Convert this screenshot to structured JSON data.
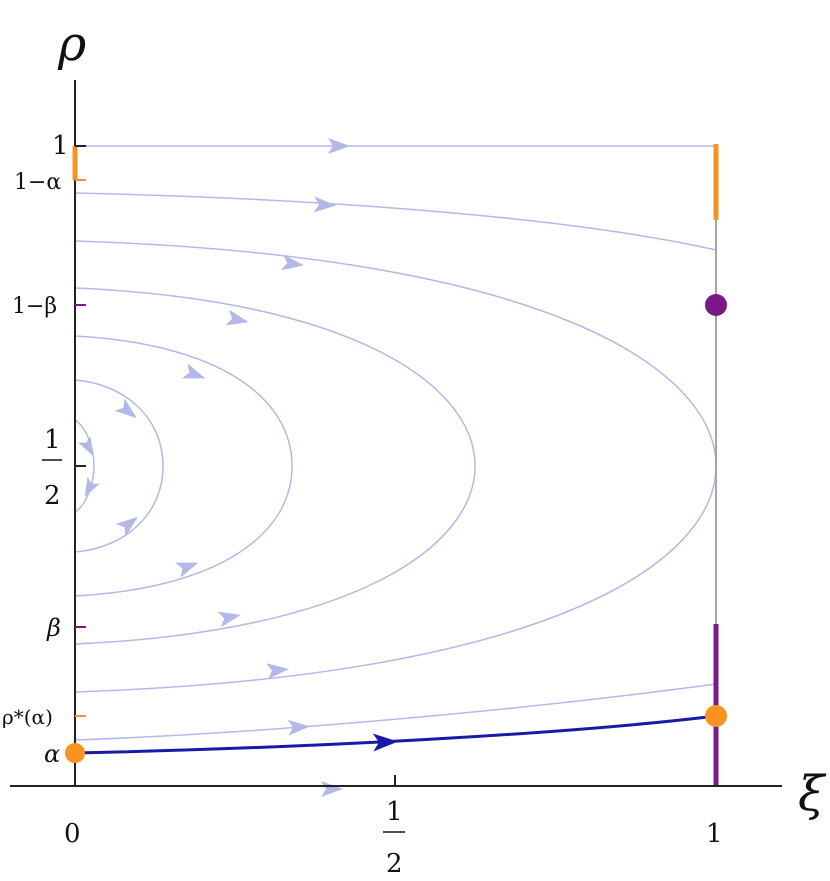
{
  "axes": {
    "x_title": "ξ",
    "y_title": "ρ"
  },
  "x_ticks": [
    {
      "value": 0,
      "label": "0"
    },
    {
      "value": 0.5,
      "num": "1",
      "den": "2"
    },
    {
      "value": 1,
      "label": "1"
    }
  ],
  "y_ticks": [
    {
      "id": "one",
      "label": "1"
    },
    {
      "id": "one-minus-alpha",
      "label": "1−α"
    },
    {
      "id": "one-minus-beta",
      "label": "1−β"
    },
    {
      "id": "half",
      "num": "1",
      "den": "2"
    },
    {
      "id": "beta",
      "label": "β"
    },
    {
      "id": "rho-star",
      "label": "ρ*(α)"
    },
    {
      "id": "alpha",
      "label": "α"
    }
  ],
  "colors": {
    "flow": "#b4b8e6",
    "highlight": "#1a1aa8",
    "orange": "#f7931e",
    "purple": "#7b1a86",
    "right_boundary": "#a6a6a6"
  },
  "points": {
    "alpha_marker": "orange",
    "rho_star_marker": "orange",
    "one_minus_beta_marker": "purple"
  }
}
